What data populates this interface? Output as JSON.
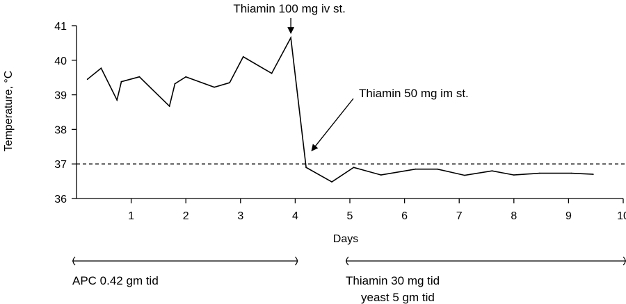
{
  "chart_data": {
    "type": "line",
    "title": "",
    "xlabel": "Days",
    "ylabel": "Temperature, °C",
    "xlim": [
      0,
      10
    ],
    "ylim": [
      36,
      41
    ],
    "x_ticks": [
      1,
      2,
      3,
      4,
      5,
      6,
      7,
      8,
      9,
      10
    ],
    "y_ticks": [
      36,
      37,
      38,
      39,
      40,
      41
    ],
    "grid": false,
    "legend": "none",
    "reference_line": {
      "y": 37,
      "style": "dashed"
    },
    "series": [
      {
        "points": [
          {
            "x": 0.2,
            "y": 39.45
          },
          {
            "x": 0.45,
            "y": 39.77
          },
          {
            "x": 0.74,
            "y": 38.85
          },
          {
            "x": 0.82,
            "y": 39.38
          },
          {
            "x": 1.15,
            "y": 39.52
          },
          {
            "x": 1.7,
            "y": 38.67
          },
          {
            "x": 1.8,
            "y": 39.32
          },
          {
            "x": 2.0,
            "y": 39.52
          },
          {
            "x": 2.52,
            "y": 39.22
          },
          {
            "x": 2.8,
            "y": 39.35
          },
          {
            "x": 3.05,
            "y": 40.1
          },
          {
            "x": 3.57,
            "y": 39.62
          },
          {
            "x": 3.92,
            "y": 40.65
          },
          {
            "x": 4.2,
            "y": 36.9
          },
          {
            "x": 4.67,
            "y": 36.48
          },
          {
            "x": 5.07,
            "y": 36.9
          },
          {
            "x": 5.57,
            "y": 36.68
          },
          {
            "x": 6.2,
            "y": 36.85
          },
          {
            "x": 6.6,
            "y": 36.85
          },
          {
            "x": 7.1,
            "y": 36.67
          },
          {
            "x": 7.6,
            "y": 36.8
          },
          {
            "x": 8.0,
            "y": 36.68
          },
          {
            "x": 8.47,
            "y": 36.73
          },
          {
            "x": 9.05,
            "y": 36.73
          },
          {
            "x": 9.45,
            "y": 36.7
          }
        ]
      }
    ],
    "annotations": [
      {
        "text": "Thiamin 100 mg iv st.",
        "x": 3.92,
        "y": 40.65
      },
      {
        "text": "Thiamin 50 mg im st.",
        "x": 4.2,
        "y": 36.9
      }
    ],
    "regimens": [
      {
        "lines": [
          "APC 0.42 gm tid"
        ],
        "x_start": 0,
        "x_end": 4
      },
      {
        "lines": [
          "Thiamin 30 mg tid",
          "yeast 5 gm tid"
        ],
        "x_start": 5,
        "x_end": 10
      }
    ]
  }
}
